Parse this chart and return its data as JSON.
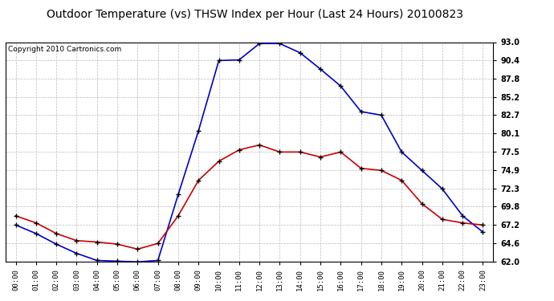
{
  "title": "Outdoor Temperature (vs) THSW Index per Hour (Last 24 Hours) 20100823",
  "copyright": "Copyright 2010 Cartronics.com",
  "hours": [
    "00:00",
    "01:00",
    "02:00",
    "03:00",
    "04:00",
    "05:00",
    "06:00",
    "07:00",
    "08:00",
    "09:00",
    "10:00",
    "11:00",
    "12:00",
    "13:00",
    "14:00",
    "15:00",
    "16:00",
    "17:00",
    "18:00",
    "19:00",
    "20:00",
    "21:00",
    "22:00",
    "23:00"
  ],
  "temp": [
    68.5,
    67.5,
    66.0,
    65.0,
    64.8,
    64.5,
    63.8,
    64.6,
    68.5,
    73.5,
    76.2,
    77.8,
    78.5,
    77.5,
    77.5,
    76.8,
    77.5,
    75.2,
    74.9,
    73.5,
    70.2,
    68.0,
    67.5,
    67.2
  ],
  "thsw": [
    67.2,
    66.0,
    64.5,
    63.2,
    62.2,
    62.1,
    62.0,
    62.2,
    71.5,
    80.5,
    90.4,
    90.5,
    92.8,
    92.8,
    91.5,
    89.2,
    86.8,
    83.2,
    82.7,
    77.5,
    74.9,
    72.3,
    68.5,
    66.2
  ],
  "ylim": [
    62.0,
    93.0
  ],
  "yticks": [
    62.0,
    64.6,
    67.2,
    69.8,
    72.3,
    74.9,
    77.5,
    80.1,
    82.7,
    85.2,
    87.8,
    90.4,
    93.0
  ],
  "temp_color": "#cc0000",
  "thsw_color": "#0000cc",
  "bg_color": "#ffffff",
  "grid_color": "#bbbbbb",
  "title_fontsize": 10,
  "copyright_fontsize": 6.5
}
